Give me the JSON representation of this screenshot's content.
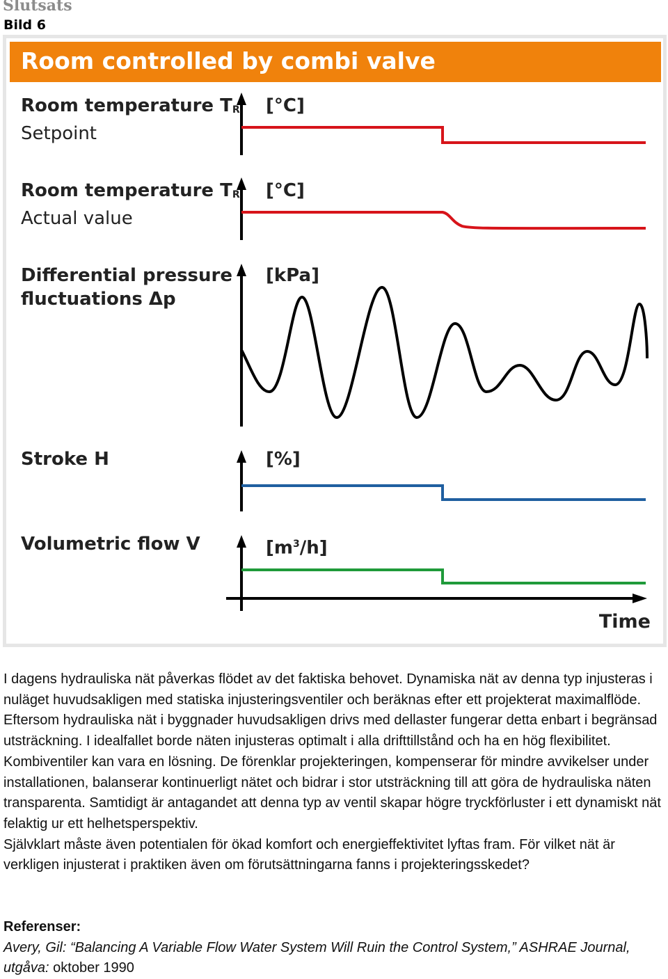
{
  "header": {
    "section_title": "Slutsats",
    "figure_caption": "Bild 6"
  },
  "figure": {
    "title": "Room controlled by combi valve",
    "panels": [
      {
        "label_line1": "Room temperature T",
        "subscript": "R",
        "label_line2": "Setpoint",
        "unit": "[°C]",
        "color": "#d7141a"
      },
      {
        "label_line1": "Room temperature T",
        "subscript": "R",
        "label_line2": "Actual value",
        "unit": "[°C]",
        "color": "#d7141a"
      },
      {
        "label_line1": "Differential pressure",
        "label_line2": "fluctuations Δp",
        "unit": "[kPa]",
        "color": "#000000"
      },
      {
        "label_line1": "Stroke H",
        "unit": "[%]",
        "color": "#1f5fa0"
      },
      {
        "label_line1": "Volumetric flow V",
        "unit_main": "[m",
        "unit_sup": "3",
        "unit_end": "/h]",
        "color": "#1f9a3a"
      }
    ],
    "x_axis_label": "Time",
    "banner_color": "#f0820c"
  },
  "body_paragraphs": [
    "I dagens hydrauliska nät påverkas flödet av det faktiska behovet. Dynamiska nät av denna typ injusteras i nuläget huvudsakligen med statiska injusteringsventiler och beräknas efter ett projekterat maximalflöde. Eftersom hydrauliska nät i byggnader huvudsakligen drivs med dellaster fungerar detta enbart i begränsad utsträckning. I idealfallet borde näten injusteras optimalt i alla drifttillstånd och ha en hög flexibilitet.",
    "Kombiventiler kan vara en lösning. De förenklar projekteringen, kompenserar för mindre avvikelser under installationen, balanserar kontinuerligt nätet och bidrar i stor utsträckning till att göra de hydrauliska näten transparenta. Samtidigt är antagandet att denna typ av ventil skapar högre tryckförluster i ett dynamiskt nät felaktig ur ett helhetsperspektiv.",
    "Självklart måste även potentialen för ökad komfort och energieffektivitet lyftas fram. För vilket nät är verkligen injusterat i praktiken även om förutsättningarna fanns i projekteringsskedet?"
  ],
  "references": {
    "heading": "Referenser:",
    "entry_italic": "Avery, Gil: “Balancing A Variable Flow Water System Will Ruin the Control System,” ASHRAE Journal, utgåva:",
    "entry_date": " oktober 1990"
  }
}
